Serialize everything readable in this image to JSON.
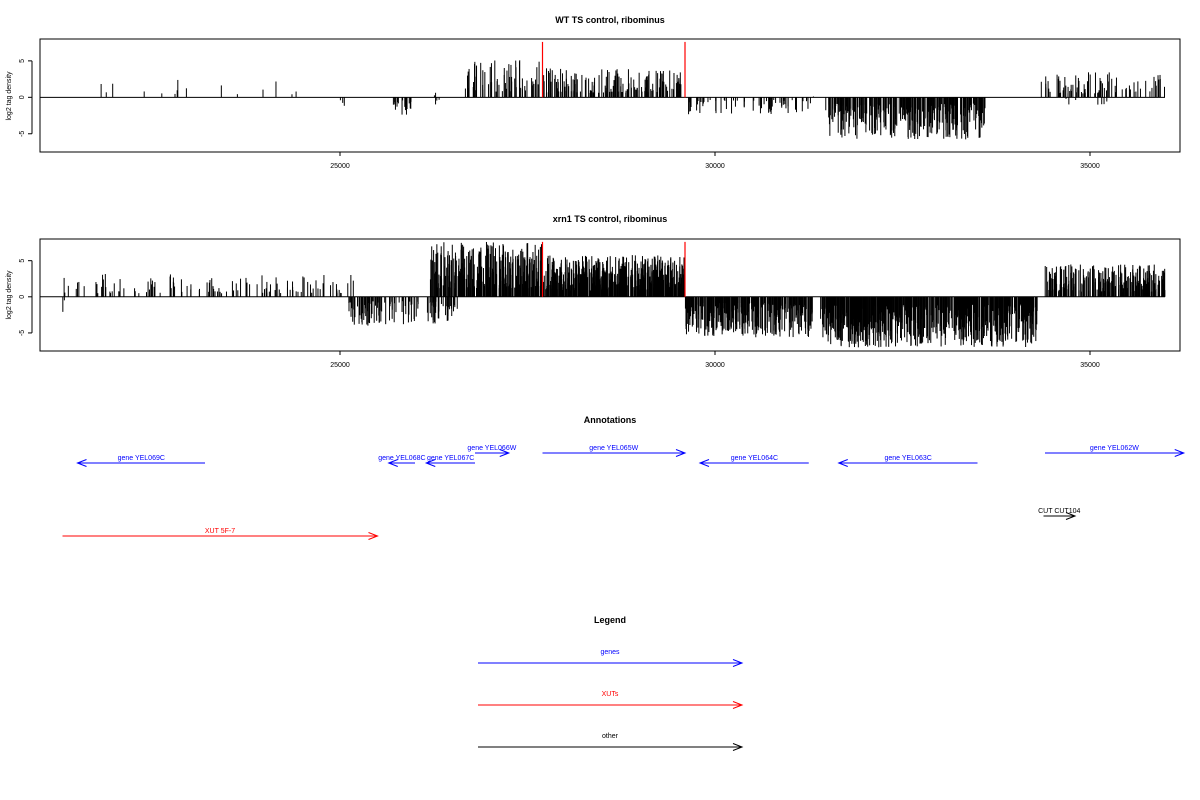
{
  "chart_data": [
    {
      "type": "bar",
      "title": "WT TS control, ribominus",
      "ylabel": "log2 tag density",
      "xlim": [
        21000,
        36200
      ],
      "ylim": [
        -7.5,
        8
      ],
      "x_ticks": [
        25000,
        30000,
        35000
      ],
      "x_tick_labels": [
        "25000",
        "30000",
        "35000"
      ],
      "y_ticks": [
        5,
        0,
        -5
      ],
      "y_tick_labels": [
        "5",
        "0",
        "-5"
      ],
      "baseline_range": [
        21000,
        36000
      ],
      "red_marker_x": [
        27700,
        29600
      ],
      "red_marker_top": 7.6,
      "segments": [
        {
          "range": [
            21500,
            25200
          ],
          "sign": 1,
          "density": 0.004,
          "max": 2.6,
          "seed": 11
        },
        {
          "range": [
            25000,
            25150
          ],
          "sign": -1,
          "density": 0.02,
          "max": 2.0,
          "seed": 12
        },
        {
          "range": [
            25700,
            25950
          ],
          "sign": -1,
          "density": 0.08,
          "max": 2.8,
          "seed": 13
        },
        {
          "range": [
            26250,
            26350
          ],
          "sign": -1,
          "density": 0.03,
          "max": 1.8,
          "seed": 14
        },
        {
          "range": [
            26250,
            26350
          ],
          "sign": 1,
          "density": 0.02,
          "max": 1.0,
          "seed": 15
        },
        {
          "range": [
            26650,
            27700
          ],
          "sign": 1,
          "density": 0.06,
          "max": 5.2,
          "seed": 16
        },
        {
          "range": [
            27700,
            29550
          ],
          "sign": 1,
          "density": 0.08,
          "max": 4.0,
          "seed": 17
        },
        {
          "range": [
            29600,
            31300
          ],
          "sign": -1,
          "density": 0.04,
          "max": 2.4,
          "seed": 18
        },
        {
          "range": [
            31300,
            31350
          ],
          "sign": 1,
          "density": 0.02,
          "max": 0.8,
          "seed": 19
        },
        {
          "range": [
            31400,
            33600
          ],
          "sign": -1,
          "density": 0.14,
          "max": 5.8,
          "seed": 20
        },
        {
          "range": [
            34350,
            36000
          ],
          "sign": 1,
          "density": 0.05,
          "max": 3.6,
          "seed": 21
        },
        {
          "range": [
            34650,
            35300
          ],
          "sign": -1,
          "density": 0.01,
          "max": 1.2,
          "seed": 22
        }
      ]
    },
    {
      "type": "bar",
      "title": "xrn1 TS control, ribominus",
      "ylabel": "log2 tag density",
      "xlim": [
        21000,
        36200
      ],
      "ylim": [
        -7.5,
        8
      ],
      "x_ticks": [
        25000,
        30000,
        35000
      ],
      "x_tick_labels": [
        "25000",
        "30000",
        "35000"
      ],
      "y_ticks": [
        5,
        0,
        -5
      ],
      "y_tick_labels": [
        "5",
        "0",
        "-5"
      ],
      "baseline_range": [
        21000,
        36000
      ],
      "red_marker_x": [
        27700,
        29600
      ],
      "red_marker_top": 7.6,
      "segments": [
        {
          "range": [
            21300,
            21400
          ],
          "sign": -1,
          "density": 0.02,
          "max": 2.6,
          "seed": 31
        },
        {
          "range": [
            21300,
            25200
          ],
          "sign": 1,
          "density": 0.03,
          "max": 3.2,
          "seed": 32
        },
        {
          "range": [
            25100,
            26600
          ],
          "sign": -1,
          "density": 0.08,
          "max": 4.0,
          "seed": 33
        },
        {
          "range": [
            26200,
            27700
          ],
          "sign": 1,
          "density": 0.2,
          "max": 7.6,
          "seed": 34
        },
        {
          "range": [
            27700,
            29600
          ],
          "sign": 1,
          "density": 0.25,
          "max": 5.8,
          "seed": 35
        },
        {
          "range": [
            29600,
            31300
          ],
          "sign": -1,
          "density": 0.2,
          "max": 5.6,
          "seed": 36
        },
        {
          "range": [
            31400,
            34300
          ],
          "sign": -1,
          "density": 0.22,
          "max": 7.0,
          "seed": 37
        },
        {
          "range": [
            34400,
            36000
          ],
          "sign": 1,
          "density": 0.15,
          "max": 4.5,
          "seed": 38
        }
      ]
    }
  ],
  "annotations": {
    "title": "Annotations",
    "features": [
      {
        "label": "gene YEL069C",
        "category": "genes",
        "start": 23200,
        "end": 21500,
        "row": 2
      },
      {
        "label": "gene YEL068C",
        "category": "genes",
        "start": 26000,
        "end": 25650,
        "row": 2
      },
      {
        "label": "gene YEL067C",
        "category": "genes",
        "start": 26800,
        "end": 26150,
        "row": 2
      },
      {
        "label": "gene YEL066W",
        "category": "genes",
        "start": 26800,
        "end": 27250,
        "row": 1
      },
      {
        "label": "gene YEL065W",
        "category": "genes",
        "start": 27700,
        "end": 29600,
        "row": 1
      },
      {
        "label": "gene YEL064C",
        "category": "genes",
        "start": 31250,
        "end": 29800,
        "row": 2
      },
      {
        "label": "gene YEL063C",
        "category": "genes",
        "start": 33500,
        "end": 31650,
        "row": 2
      },
      {
        "label": "gene YEL062W",
        "category": "genes",
        "start": 34400,
        "end": 36250,
        "row": 1
      },
      {
        "label": "CUT CUT104",
        "category": "other",
        "start": 34380,
        "end": 34800,
        "row": 3
      },
      {
        "label": "XUT 5F-7",
        "category": "XUTs",
        "start": 21300,
        "end": 25500,
        "row": 4
      }
    ]
  },
  "legend": {
    "title": "Legend",
    "items": [
      {
        "label": "genes",
        "category": "genes"
      },
      {
        "label": "XUTs",
        "category": "XUTs"
      },
      {
        "label": "other",
        "category": "other"
      }
    ]
  },
  "colors": {
    "genes": "#0000ff",
    "XUTs": "#ff0000",
    "other": "#000000",
    "bars": "#000000",
    "marker": "#ff0000"
  }
}
